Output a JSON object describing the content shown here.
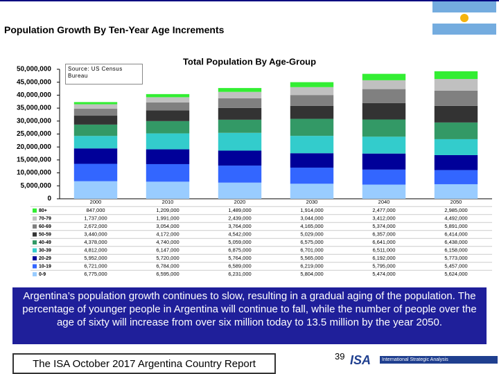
{
  "header": {
    "title": "Population Growth By Ten-Year Age Increments"
  },
  "chart_data": {
    "type": "stacked_bar",
    "title": "Total Population By Age-Group",
    "source_note": "Source: US Census Bureau",
    "categories": [
      "2000",
      "2010",
      "2020",
      "2030",
      "2040",
      "2050"
    ],
    "ylim": [
      0,
      50000000
    ],
    "yticks": [
      0,
      {
        "value": 5000000,
        "label": "5,000,000"
      },
      {
        "value": 10000000,
        "label": "10,000,000"
      },
      {
        "value": 15000000,
        "label": "15,000,000"
      },
      {
        "value": 20000000,
        "label": "20,000,000"
      },
      {
        "value": 25000000,
        "label": "25,000,000"
      },
      {
        "value": 30000000,
        "label": "30,000,000"
      },
      {
        "value": 35000000,
        "label": "35,000,000"
      },
      {
        "value": 40000000,
        "label": "40,000,000"
      },
      {
        "value": 45000000,
        "label": "45,000,000"
      },
      {
        "value": 50000000,
        "label": "50,000,000"
      }
    ],
    "series": [
      {
        "name": "80+",
        "color": "#33ee33",
        "values": [
          847000,
          1209000,
          1489000,
          1914000,
          2477000,
          2985000
        ],
        "value_labels": [
          "847,000",
          "1,209,000",
          "1,489,000",
          "1,914,000",
          "2,477,000",
          "2,985,000"
        ]
      },
      {
        "name": "70-79",
        "color": "#c0c0c0",
        "values": [
          1737000,
          1991000,
          2439000,
          3044000,
          3412000,
          4492000
        ],
        "value_labels": [
          "1,737,000",
          "1,991,000",
          "2,439,000",
          "3,044,000",
          "3,412,000",
          "4,492,000"
        ]
      },
      {
        "name": "60-69",
        "color": "#808080",
        "values": [
          2672000,
          3054000,
          3764000,
          4165000,
          5374000,
          5891000
        ],
        "value_labels": [
          "2,672,000",
          "3,054,000",
          "3,764,000",
          "4,165,000",
          "5,374,000",
          "5,891,000"
        ]
      },
      {
        "name": "50-59",
        "color": "#333333",
        "values": [
          3440000,
          4172000,
          4542000,
          5029000,
          6357000,
          6414000
        ],
        "value_labels": [
          "3,440,000",
          "4,172,000",
          "4,542,000",
          "5,029,000",
          "6,357,000",
          "6,414,000"
        ]
      },
      {
        "name": "40-49",
        "color": "#339966",
        "values": [
          4378000,
          4740000,
          5059000,
          6575000,
          6641000,
          6438000
        ],
        "value_labels": [
          "4,378,000",
          "4,740,000",
          "5,059,000",
          "6,575,000",
          "6,641,000",
          "6,438,000"
        ]
      },
      {
        "name": "30-39",
        "color": "#33cccc",
        "values": [
          4812000,
          6147000,
          6875000,
          6701000,
          6511000,
          6158000
        ],
        "value_labels": [
          "4,812,000",
          "6,147,000",
          "6,875,000",
          "6,701,000",
          "6,511,000",
          "6,158,000"
        ]
      },
      {
        "name": "20-29",
        "color": "#000099",
        "values": [
          5952000,
          5720000,
          5764000,
          5565000,
          6192000,
          5773000
        ],
        "value_labels": [
          "5,952,000",
          "5,720,000",
          "5,764,000",
          "5,565,000",
          "6,192,000",
          "5,773,000"
        ]
      },
      {
        "name": "10-19",
        "color": "#3366ff",
        "values": [
          6721000,
          6784000,
          6589000,
          6219000,
          5795000,
          5457000
        ],
        "value_labels": [
          "6,721,000",
          "6,784,000",
          "6,589,000",
          "6,219,000",
          "5,795,000",
          "5,457,000"
        ]
      },
      {
        "name": "0-9",
        "color": "#99ccff",
        "values": [
          6775000,
          6595000,
          6231000,
          5804000,
          5474000,
          5624000
        ],
        "value_labels": [
          "6,775,000",
          "6,595,000",
          "6,231,000",
          "5,804,000",
          "5,474,000",
          "5,624,000"
        ]
      }
    ]
  },
  "summary": "Argentina’s population growth continues to slow, resulting in a gradual aging of the population.  The percentage of younger people in Argentina will continue to fall, while the number of people over the age of sixty will increase from over six million today to 13.5 million by the year 2050.",
  "footer": {
    "report": "The ISA October 2017 Argentina Country Report",
    "page": "39",
    "logo": "ISA",
    "logo_name": "International Strategic Analysis"
  }
}
